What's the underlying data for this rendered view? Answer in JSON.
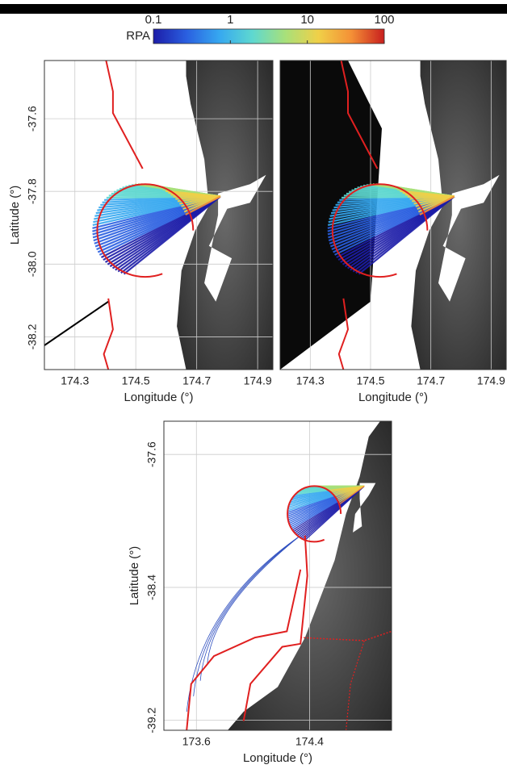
{
  "chart_data": [
    {
      "type": "colorbar",
      "label": "RPA",
      "log": true,
      "xlim": [
        0.1,
        100
      ],
      "xticks": [
        0.1,
        1,
        10,
        100
      ],
      "colors": [
        "#1c1ca8",
        "#2a5fe0",
        "#36a8f0",
        "#5ed8d0",
        "#a8e07a",
        "#f0d048",
        "#f49036",
        "#c81e1e"
      ]
    },
    {
      "type": "map",
      "xlabel": "Longitude (°)",
      "ylabel": "Latitude (°)",
      "xlim": [
        174.2,
        174.95
      ],
      "ylim": [
        -38.29,
        -37.44
      ],
      "xticks": [
        174.3,
        174.5,
        174.7,
        174.9
      ],
      "yticks": [
        -37.6,
        -37.8,
        {
          "value": -38,
          "label": "-38.0"
        },
        -38.2
      ],
      "grid": true
    },
    {
      "type": "map",
      "xlabel": "Longitude (°)",
      "xlim": [
        174.2,
        174.95
      ],
      "ylim": [
        -38.29,
        -37.44
      ],
      "xticks": [
        174.3,
        174.5,
        174.7,
        174.9
      ],
      "grid": true
    },
    {
      "type": "map",
      "xlabel": "Longitude (°)",
      "ylabel": "Latitude (°)",
      "xlim": [
        173.37,
        174.98
      ],
      "ylim": [
        -39.26,
        -37.4
      ],
      "xticks": [
        173.6,
        174.4
      ],
      "yticks": [
        -37.6,
        -38.4,
        -39.2
      ],
      "grid": true
    }
  ]
}
